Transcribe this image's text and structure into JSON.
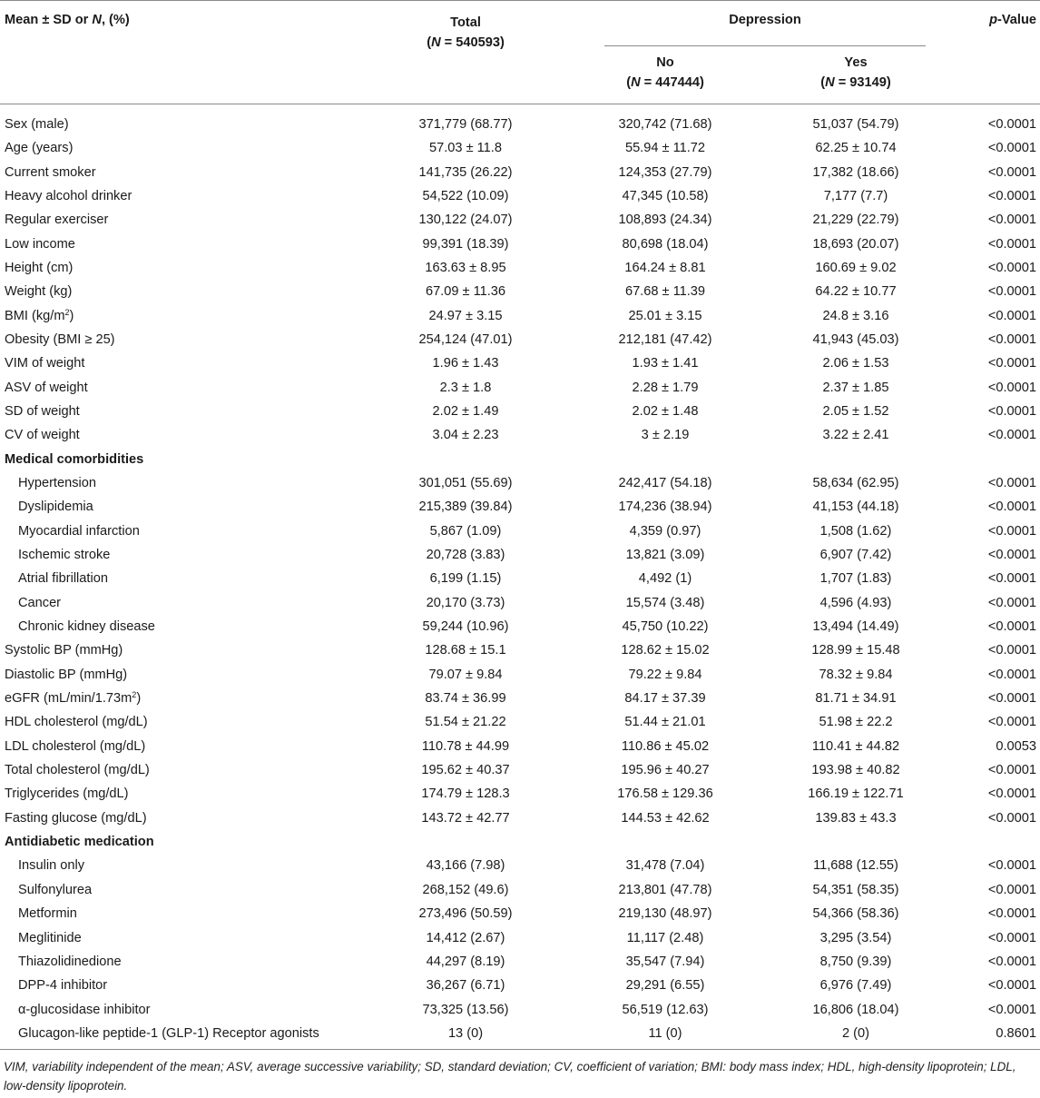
{
  "header": {
    "col1": "Mean ± SD or N, (%)",
    "col1_parts": {
      "a": "Mean ± SD or ",
      "n": "N",
      "b": ", (%)"
    },
    "total_label": "Total",
    "total_n": {
      "open": "(",
      "n": "N",
      "rest": " = 540593)"
    },
    "group_label": "Depression",
    "no_label": "No",
    "no_n": {
      "open": "(",
      "n": "N",
      "rest": " = 447444)"
    },
    "yes_label": "Yes",
    "yes_n": {
      "open": "(",
      "n": "N",
      "rest": " = 93149)"
    },
    "pvalue": {
      "p": "p",
      "rest": "-Value"
    }
  },
  "rows": [
    {
      "label": "Sex (male)",
      "total": "371,779 (68.77)",
      "no": "320,742 (71.68)",
      "yes": "51,037 (54.79)",
      "p": "<0.0001"
    },
    {
      "label": "Age (years)",
      "total": "57.03 ± 11.8",
      "no": "55.94 ± 11.72",
      "yes": "62.25 ± 10.74",
      "p": "<0.0001"
    },
    {
      "label": "Current smoker",
      "total": "141,735 (26.22)",
      "no": "124,353 (27.79)",
      "yes": "17,382 (18.66)",
      "p": "<0.0001"
    },
    {
      "label": "Heavy alcohol drinker",
      "total": "54,522 (10.09)",
      "no": "47,345 (10.58)",
      "yes": "7,177 (7.7)",
      "p": "<0.0001"
    },
    {
      "label": "Regular exerciser",
      "total": "130,122 (24.07)",
      "no": "108,893 (24.34)",
      "yes": "21,229 (22.79)",
      "p": "<0.0001"
    },
    {
      "label": "Low income",
      "total": "99,391 (18.39)",
      "no": "80,698 (18.04)",
      "yes": "18,693 (20.07)",
      "p": "<0.0001"
    },
    {
      "label": "Height (cm)",
      "total": "163.63 ± 8.95",
      "no": "164.24 ± 8.81",
      "yes": "160.69 ± 9.02",
      "p": "<0.0001"
    },
    {
      "label": "Weight (kg)",
      "total": "67.09 ± 11.36",
      "no": "67.68 ± 11.39",
      "yes": "64.22 ± 10.77",
      "p": "<0.0001"
    },
    {
      "label": "BMI (kg/m",
      "sup": "2",
      "label_after": ")",
      "total": "24.97 ± 3.15",
      "no": "25.01 ± 3.15",
      "yes": "24.8 ± 3.16",
      "p": "<0.0001"
    },
    {
      "label": "Obesity (BMI ≥ 25)",
      "total": "254,124 (47.01)",
      "no": "212,181 (47.42)",
      "yes": "41,943 (45.03)",
      "p": "<0.0001"
    },
    {
      "label": "VIM of weight",
      "total": "1.96 ± 1.43",
      "no": "1.93 ± 1.41",
      "yes": "2.06 ± 1.53",
      "p": "<0.0001"
    },
    {
      "label": "ASV of weight",
      "total": "2.3 ± 1.8",
      "no": "2.28 ± 1.79",
      "yes": "2.37 ± 1.85",
      "p": "<0.0001"
    },
    {
      "label": "SD of weight",
      "total": "2.02 ± 1.49",
      "no": "2.02 ± 1.48",
      "yes": "2.05 ± 1.52",
      "p": "<0.0001"
    },
    {
      "label": "CV of weight",
      "total": "3.04 ± 2.23",
      "no": "3 ± 2.19",
      "yes": "3.22 ± 2.41",
      "p": "<0.0001"
    },
    {
      "label": "Medical comorbidities",
      "section": true
    },
    {
      "label": "Hypertension",
      "indent": true,
      "total": "301,051 (55.69)",
      "no": "242,417 (54.18)",
      "yes": "58,634 (62.95)",
      "p": "<0.0001"
    },
    {
      "label": "Dyslipidemia",
      "indent": true,
      "total": "215,389 (39.84)",
      "no": "174,236 (38.94)",
      "yes": "41,153 (44.18)",
      "p": "<0.0001"
    },
    {
      "label": "Myocardial infarction",
      "indent": true,
      "total": "5,867 (1.09)",
      "no": "4,359 (0.97)",
      "yes": "1,508 (1.62)",
      "p": "<0.0001"
    },
    {
      "label": "Ischemic stroke",
      "indent": true,
      "total": "20,728 (3.83)",
      "no": "13,821 (3.09)",
      "yes": "6,907 (7.42)",
      "p": "<0.0001"
    },
    {
      "label": "Atrial fibrillation",
      "indent": true,
      "total": "6,199 (1.15)",
      "no": "4,492 (1)",
      "yes": "1,707 (1.83)",
      "p": "<0.0001"
    },
    {
      "label": "Cancer",
      "indent": true,
      "total": "20,170 (3.73)",
      "no": "15,574 (3.48)",
      "yes": "4,596 (4.93)",
      "p": "<0.0001"
    },
    {
      "label": "Chronic kidney disease",
      "indent": true,
      "total": "59,244 (10.96)",
      "no": "45,750 (10.22)",
      "yes": "13,494 (14.49)",
      "p": "<0.0001"
    },
    {
      "label": "Systolic BP (mmHg)",
      "total": "128.68 ± 15.1",
      "no": "128.62 ± 15.02",
      "yes": "128.99 ± 15.48",
      "p": "<0.0001"
    },
    {
      "label": "Diastolic BP (mmHg)",
      "total": "79.07 ± 9.84",
      "no": "79.22 ± 9.84",
      "yes": "78.32 ± 9.84",
      "p": "<0.0001"
    },
    {
      "label": "eGFR (mL/min/1.73m",
      "sup": "2",
      "label_after": ")",
      "total": "83.74 ± 36.99",
      "no": "84.17 ± 37.39",
      "yes": "81.71 ± 34.91",
      "p": "<0.0001"
    },
    {
      "label": "HDL cholesterol (mg/dL)",
      "total": "51.54 ± 21.22",
      "no": "51.44 ± 21.01",
      "yes": "51.98 ± 22.2",
      "p": "<0.0001"
    },
    {
      "label": "LDL cholesterol (mg/dL)",
      "total": "110.78 ± 44.99",
      "no": "110.86 ± 45.02",
      "yes": "110.41 ± 44.82",
      "p": "0.0053"
    },
    {
      "label": "Total cholesterol (mg/dL)",
      "total": "195.62 ± 40.37",
      "no": "195.96 ± 40.27",
      "yes": "193.98 ± 40.82",
      "p": "<0.0001"
    },
    {
      "label": "Triglycerides (mg/dL)",
      "total": "174.79 ± 128.3",
      "no": "176.58 ± 129.36",
      "yes": "166.19 ± 122.71",
      "p": "<0.0001"
    },
    {
      "label": "Fasting glucose (mg/dL)",
      "total": "143.72 ± 42.77",
      "no": "144.53 ± 42.62",
      "yes": "139.83 ± 43.3",
      "p": "<0.0001"
    },
    {
      "label": "Antidiabetic medication",
      "section": true
    },
    {
      "label": "Insulin only",
      "indent": true,
      "total": "43,166 (7.98)",
      "no": "31,478 (7.04)",
      "yes": "11,688 (12.55)",
      "p": "<0.0001"
    },
    {
      "label": "Sulfonylurea",
      "indent": true,
      "total": "268,152 (49.6)",
      "no": "213,801 (47.78)",
      "yes": "54,351 (58.35)",
      "p": "<0.0001"
    },
    {
      "label": "Metformin",
      "indent": true,
      "total": "273,496 (50.59)",
      "no": "219,130 (48.97)",
      "yes": "54,366 (58.36)",
      "p": "<0.0001"
    },
    {
      "label": "Meglitinide",
      "indent": true,
      "total": "14,412 (2.67)",
      "no": "11,117 (2.48)",
      "yes": "3,295 (3.54)",
      "p": "<0.0001"
    },
    {
      "label": "Thiazolidinedione",
      "indent": true,
      "total": "44,297 (8.19)",
      "no": "35,547 (7.94)",
      "yes": "8,750 (9.39)",
      "p": "<0.0001"
    },
    {
      "label": "DPP-4 inhibitor",
      "indent": true,
      "total": "36,267 (6.71)",
      "no": "29,291 (6.55)",
      "yes": "6,976 (7.49)",
      "p": "<0.0001"
    },
    {
      "label": "α-glucosidase inhibitor",
      "indent": true,
      "total": "73,325 (13.56)",
      "no": "56,519 (12.63)",
      "yes": "16,806 (18.04)",
      "p": "<0.0001"
    },
    {
      "label": "Glucagon-like peptide-1 (GLP-1) Receptor agonists",
      "indent": true,
      "total": "13 (0)",
      "no": "11 (0)",
      "yes": "2 (0)",
      "p": "0.8601"
    }
  ],
  "footnote": "VIM, variability independent of the mean; ASV, average successive variability; SD, standard deviation; CV, coefficient of variation; BMI: body mass index; HDL, high-density lipoprotein; LDL, low-density lipoprotein."
}
